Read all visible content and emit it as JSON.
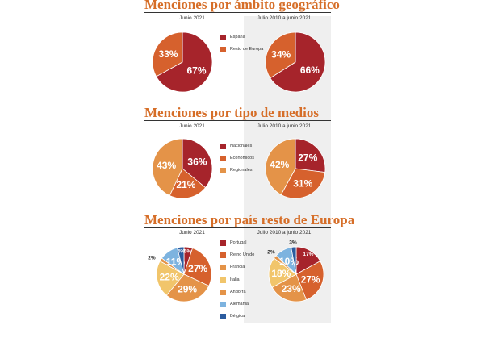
{
  "colors": {
    "title": "#d66e28",
    "dark_red": "#a6242b",
    "orange": "#d6612d",
    "light_orange": "#e49348",
    "yellow": "#f1c56b",
    "light_blue": "#7db3df",
    "blue": "#4e87c4",
    "dark_blue": "#2b5c9f",
    "shade": "#efefef"
  },
  "sections": [
    {
      "title": "Menciones por ámbito geográfico",
      "period_left": "Junio 2021",
      "period_right": "Julio 2010 a junio 2021",
      "legend": [
        {
          "label": "España",
          "color": "#a6242b"
        },
        {
          "label": "Resto de Europa",
          "color": "#d6612d"
        }
      ]
    },
    {
      "title": "Menciones por tipo de medios",
      "period_left": "Junio 2021",
      "period_right": "Julio 2010 a junio 2021",
      "legend": [
        {
          "label": "Nacionales",
          "color": "#a6242b"
        },
        {
          "label": "Económicos",
          "color": "#d6612d"
        },
        {
          "label": "Regionales",
          "color": "#e49348"
        }
      ]
    },
    {
      "title": "Menciones por país resto de Europa",
      "period_left": "Junio 2021",
      "period_right": "Julio 2010 a junio 2021",
      "legend": [
        {
          "label": "Portugal",
          "color": "#a6242b"
        },
        {
          "label": "Reino Unido",
          "color": "#d6612d"
        },
        {
          "label": "Francia",
          "color": "#e49348"
        },
        {
          "label": "Italia",
          "color": "#f1c56b"
        },
        {
          "label": "Andorra",
          "color": "#e49348"
        },
        {
          "label": "Alemania",
          "color": "#7db3df"
        },
        {
          "label": "Bélgica",
          "color": "#2b5c9f"
        }
      ]
    }
  ],
  "chart_data": [
    {
      "type": "pie",
      "title": "Menciones por ámbito geográfico",
      "period": "Junio 2021",
      "slices": [
        {
          "label": "España",
          "value": 67,
          "text": "67%",
          "color": "#a6242b"
        },
        {
          "label": "Resto de Europa",
          "value": 33,
          "text": "33%",
          "color": "#d6612d"
        }
      ]
    },
    {
      "type": "pie",
      "title": "Menciones por ámbito geográfico",
      "period": "Julio 2010 a junio 2021",
      "slices": [
        {
          "label": "España",
          "value": 66,
          "text": "66%",
          "color": "#a6242b"
        },
        {
          "label": "Resto de Europa",
          "value": 34,
          "text": "34%",
          "color": "#d6612d"
        }
      ]
    },
    {
      "type": "pie",
      "title": "Menciones por tipo de medios",
      "period": "Junio 2021",
      "slices": [
        {
          "label": "Nacionales",
          "value": 36,
          "text": "36%",
          "color": "#a6242b"
        },
        {
          "label": "Económicos",
          "value": 21,
          "text": "21%",
          "color": "#d6612d"
        },
        {
          "label": "Regionales",
          "value": 43,
          "text": "43%",
          "color": "#e49348"
        }
      ]
    },
    {
      "type": "pie",
      "title": "Menciones por tipo de medios",
      "period": "Julio 2010 a junio 2021",
      "slices": [
        {
          "label": "Nacionales",
          "value": 27,
          "text": "27%",
          "color": "#a6242b"
        },
        {
          "label": "Económicos",
          "value": 31,
          "text": "31%",
          "color": "#d6612d"
        },
        {
          "label": "Regionales",
          "value": 42,
          "text": "42%",
          "color": "#e49348"
        }
      ]
    },
    {
      "type": "pie",
      "title": "Menciones por país resto de Europa",
      "period": "Junio 2021",
      "slices": [
        {
          "label": "Portugal",
          "value": 5,
          "text": "5%",
          "color": "#a6242b"
        },
        {
          "label": "Reino Unido",
          "value": 27,
          "text": "27%",
          "color": "#d6612d"
        },
        {
          "label": "Francia",
          "value": 29,
          "text": "29%",
          "color": "#e49348"
        },
        {
          "label": "Italia",
          "value": 22,
          "text": "22%",
          "color": "#f1c56b"
        },
        {
          "label": "Andorra",
          "value": 2,
          "text": "2%",
          "color": "#e49348"
        },
        {
          "label": "Alemania",
          "value": 11,
          "text": "11%",
          "color": "#7db3df"
        },
        {
          "label": "Bélgica",
          "value": 4,
          "text": "4%",
          "color": "#2b5c9f"
        }
      ]
    },
    {
      "type": "pie",
      "title": "Menciones por país resto de Europa",
      "period": "Julio 2010 a junio 2021",
      "slices": [
        {
          "label": "Portugal",
          "value": 17,
          "text": "17%",
          "color": "#a6242b"
        },
        {
          "label": "Reino Unido",
          "value": 27,
          "text": "27%",
          "color": "#d6612d"
        },
        {
          "label": "Francia",
          "value": 23,
          "text": "23%",
          "color": "#e49348"
        },
        {
          "label": "Italia",
          "value": 18,
          "text": "18%",
          "color": "#f1c56b"
        },
        {
          "label": "Andorra",
          "value": 2,
          "text": "2%",
          "color": "#e49348"
        },
        {
          "label": "Alemania",
          "value": 10,
          "text": "10%",
          "color": "#7db3df"
        },
        {
          "label": "Bélgica",
          "value": 3,
          "text": "3%",
          "color": "#2b5c9f"
        }
      ]
    }
  ]
}
